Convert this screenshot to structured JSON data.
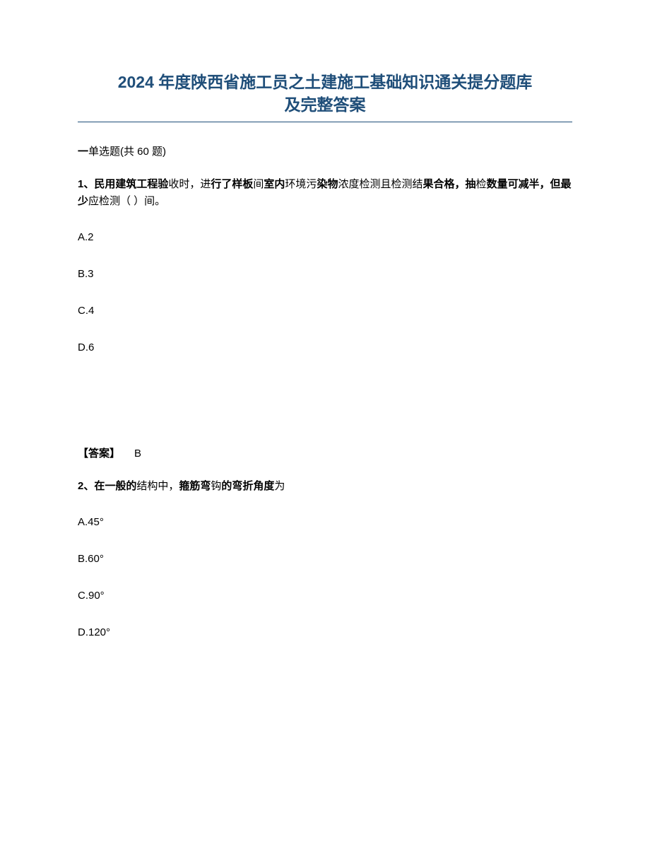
{
  "title_line1": "2024 年度陕西省施工员之土建施工基础知识通关提分题库",
  "title_line2": "及完整答案",
  "section_header_prefix": "一",
  "section_header_text": "单选题(共 60 题)",
  "q1": {
    "number": "1、",
    "text_bold1": "民用建筑工程验",
    "text_norm1": "收时，进",
    "text_bold2": "行了样板",
    "text_norm2": "间",
    "text_bold3": "室内",
    "text_norm3": "环境污",
    "text_bold4": "染物",
    "text_norm4": "浓度检测且检测结",
    "text_bold5": "果合格，抽",
    "text_norm5": "检",
    "text_bold6": "数量可减半，但最少",
    "text_norm6": "应检测（ ）间。",
    "options": {
      "A": "A.2",
      "B": "B.3",
      "C": "C.4",
      "D": "D.6"
    },
    "answer_label": "【答案】",
    "answer_value": "B"
  },
  "q2": {
    "number": "2、",
    "text_bold1": "在一般的",
    "text_norm1": "结构中，",
    "text_bold2": "箍筋弯",
    "text_norm2": "钩",
    "text_bold3": "的弯折角度",
    "text_norm3": "为",
    "options": {
      "A": "A.45°",
      "B": "B.60°",
      "C": "C.90°",
      "D": "D.120°"
    }
  }
}
